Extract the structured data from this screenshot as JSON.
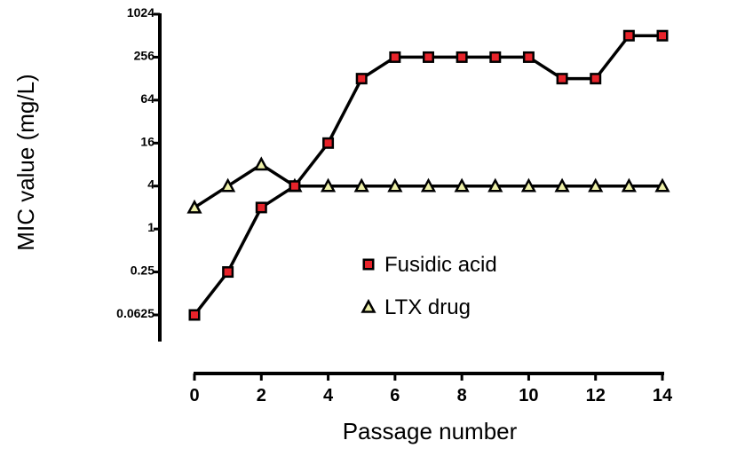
{
  "chart_data": {
    "type": "line",
    "xlabel": "Passage number",
    "ylabel": "MIC value (mg/L)",
    "y_scale": "log2",
    "ylim": [
      0.0625,
      1024
    ],
    "xlim": [
      0,
      14
    ],
    "x_ticks": [
      0,
      2,
      4,
      6,
      8,
      10,
      12,
      14
    ],
    "y_ticks": [
      0.0625,
      0.25,
      1,
      4,
      16,
      64,
      256,
      1024
    ],
    "y_tick_labels": [
      "0.0625",
      "0.25",
      "1",
      "4",
      "16",
      "64",
      "256",
      "1024"
    ],
    "grid": false,
    "legend_position": "center-right",
    "x": [
      0,
      1,
      2,
      3,
      4,
      5,
      6,
      7,
      8,
      9,
      10,
      11,
      12,
      13,
      14
    ],
    "series": [
      {
        "name": "Fusidic acid",
        "marker": "square",
        "marker_color": "#e8232a",
        "values": [
          0.0625,
          0.25,
          2,
          4,
          16,
          128,
          256,
          256,
          256,
          256,
          256,
          128,
          128,
          512,
          512
        ]
      },
      {
        "name": "LTX drug",
        "marker": "triangle",
        "marker_color": "#eef0a8",
        "values": [
          2,
          4,
          8,
          4,
          4,
          4,
          4,
          4,
          4,
          4,
          4,
          4,
          4,
          4,
          4
        ]
      }
    ]
  }
}
